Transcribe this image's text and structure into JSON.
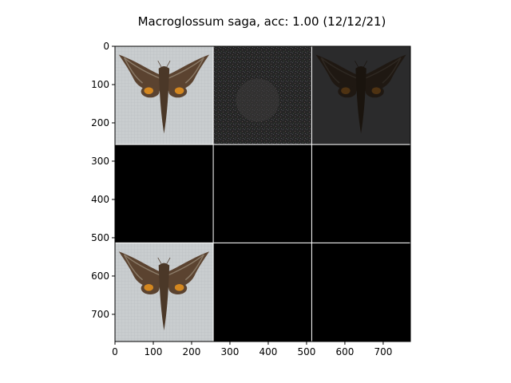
{
  "chart_data": {
    "type": "image-grid",
    "title": "Macroglossum saga, acc: 1.00 (12/12/21)",
    "xlim": [
      0,
      771
    ],
    "ylim": [
      771,
      0
    ],
    "xticks": [
      0,
      100,
      200,
      300,
      400,
      500,
      600,
      700
    ],
    "yticks": [
      0,
      100,
      200,
      300,
      400,
      500,
      600,
      700
    ],
    "grid": false,
    "grid_rows": 3,
    "grid_cols": 3,
    "tile_size": 256,
    "separator_width": 1,
    "separator_color": "#ffffff",
    "tiles": [
      {
        "row": 0,
        "col": 0,
        "content": "moth",
        "tone": "light"
      },
      {
        "row": 0,
        "col": 1,
        "content": "noise",
        "tone": "dark"
      },
      {
        "row": 0,
        "col": 2,
        "content": "moth",
        "tone": "dark"
      },
      {
        "row": 1,
        "col": 0,
        "content": "blank",
        "tone": "black"
      },
      {
        "row": 1,
        "col": 1,
        "content": "blank",
        "tone": "black"
      },
      {
        "row": 1,
        "col": 2,
        "content": "blank",
        "tone": "black"
      },
      {
        "row": 2,
        "col": 0,
        "content": "moth",
        "tone": "light"
      },
      {
        "row": 2,
        "col": 1,
        "content": "blank",
        "tone": "black"
      },
      {
        "row": 2,
        "col": 2,
        "content": "blank",
        "tone": "black"
      }
    ]
  },
  "colors": {
    "light_bg": "#c9cdcf",
    "dark_bg": "#2b2b2c",
    "noise_bg": "#262626",
    "black": "#000000",
    "wing_dark": "#5b4330",
    "wing_light": "#8b7b68",
    "orange": "#d4871f",
    "body": "#4b3828"
  }
}
